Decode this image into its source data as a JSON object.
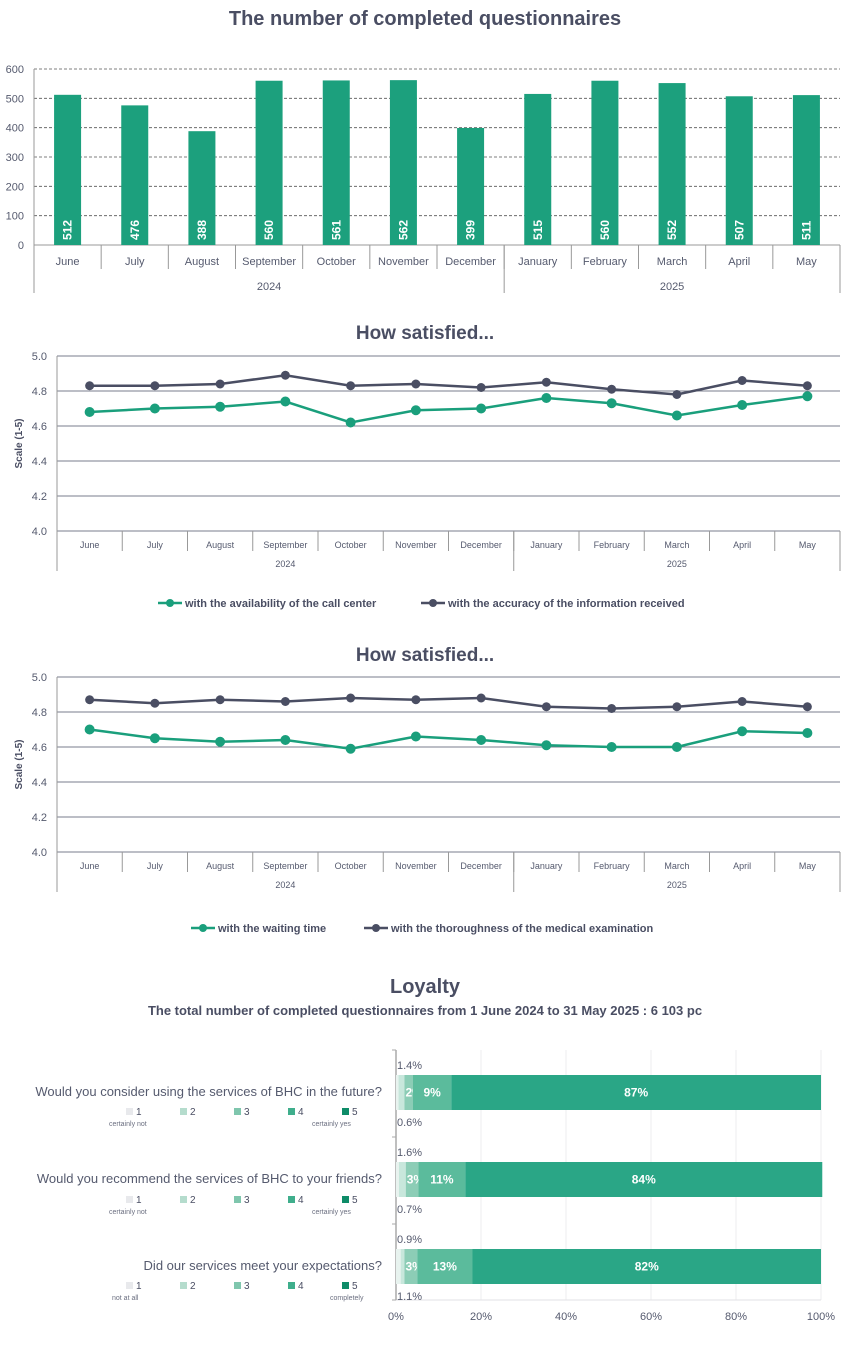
{
  "colors": {
    "green": "#1a9f7c",
    "dark": "#4a4e63",
    "grid": "#7a7d8c",
    "likert": [
      "#e8e9ec",
      "#b5dccd",
      "#7fc6ad",
      "#3fae8c",
      "#0e8c68"
    ],
    "bar_main": "#2aa686"
  },
  "chart_data": [
    {
      "type": "bar",
      "title": "The number of completed questionnaires",
      "categories": [
        "June",
        "July",
        "August",
        "September",
        "October",
        "November",
        "December",
        "January",
        "February",
        "March",
        "April",
        "May"
      ],
      "year_groups": [
        {
          "label": "2024",
          "span": 7
        },
        {
          "label": "2025",
          "span": 5
        }
      ],
      "values": [
        512,
        476,
        388,
        560,
        561,
        562,
        399,
        515,
        560,
        552,
        507,
        511
      ],
      "ylim": [
        0,
        600
      ],
      "yticks": [
        "0",
        "100",
        "200",
        "300",
        "400",
        "500",
        "600"
      ],
      "grid": "dashed"
    },
    {
      "type": "line",
      "title": "How satisfied...",
      "ylabel": "Scale (1-5)",
      "ylim": [
        4.0,
        5.0
      ],
      "yticks": [
        "4.0",
        "4.2",
        "4.4",
        "4.6",
        "4.8",
        "5.0"
      ],
      "categories": [
        "June",
        "July",
        "August",
        "September",
        "October",
        "November",
        "December",
        "January",
        "February",
        "March",
        "April",
        "May"
      ],
      "year_groups": [
        {
          "label": "2024",
          "span": 7
        },
        {
          "label": "2025",
          "span": 5
        }
      ],
      "series": [
        {
          "name": "with the availability of the call center",
          "color": "green",
          "values": [
            4.68,
            4.7,
            4.71,
            4.74,
            4.62,
            4.69,
            4.7,
            4.76,
            4.73,
            4.66,
            4.72,
            4.77
          ]
        },
        {
          "name": "with the accuracy of the information received",
          "color": "dark",
          "values": [
            4.83,
            4.83,
            4.84,
            4.89,
            4.83,
            4.84,
            4.82,
            4.85,
            4.81,
            4.78,
            4.86,
            4.83
          ]
        }
      ],
      "legend": "bottom"
    },
    {
      "type": "line",
      "title": "How satisfied...",
      "ylabel": "Scale (1-5)",
      "ylim": [
        4.0,
        5.0
      ],
      "yticks": [
        "4.0",
        "4.2",
        "4.4",
        "4.6",
        "4.8",
        "5.0"
      ],
      "categories": [
        "June",
        "July",
        "August",
        "September",
        "October",
        "November",
        "December",
        "January",
        "February",
        "March",
        "April",
        "May"
      ],
      "year_groups": [
        {
          "label": "2024",
          "span": 7
        },
        {
          "label": "2025",
          "span": 5
        }
      ],
      "series": [
        {
          "name": "with the waiting time",
          "color": "green",
          "values": [
            4.7,
            4.65,
            4.63,
            4.64,
            4.59,
            4.66,
            4.64,
            4.61,
            4.6,
            4.6,
            4.69,
            4.68
          ]
        },
        {
          "name": "with the thoroughness of the medical examination",
          "color": "dark",
          "values": [
            4.87,
            4.85,
            4.87,
            4.86,
            4.88,
            4.87,
            4.88,
            4.83,
            4.82,
            4.83,
            4.86,
            4.83
          ]
        }
      ],
      "legend": "bottom"
    },
    {
      "type": "bar",
      "orientation": "horizontal-stacked",
      "title": "Loyalty",
      "subtitle": "The total number of completed questionnaires from 1 June 2024 to 31 May 2025 : 6 103 pc",
      "xticks": [
        "0%",
        "20%",
        "40%",
        "60%",
        "80%",
        "100%"
      ],
      "xlim": [
        0,
        100
      ],
      "legend_levels": [
        "1",
        "2",
        "3",
        "4",
        "5"
      ],
      "questions": [
        {
          "label": "Would you consider using the services of BHC in the future?",
          "anchor_low": "certainly not",
          "anchor_high": "certainly yes",
          "segments": [
            0.6,
            1.4,
            2,
            9,
            87
          ],
          "labels_inside": [
            "",
            "",
            "2%",
            "9%",
            "87%"
          ],
          "label_above": "1.4%",
          "label_below": "0.6%"
        },
        {
          "label": "Would you recommend the services of BHC to your friends?",
          "anchor_low": "certainly not",
          "anchor_high": "certainly yes",
          "segments": [
            0.7,
            1.6,
            3,
            11,
            84
          ],
          "labels_inside": [
            "",
            "",
            "3%",
            "11%",
            "84%"
          ],
          "label_above": "1.6%",
          "label_below": "0.7%"
        },
        {
          "label": "Did our services meet your expectations?",
          "anchor_low": "not at all",
          "anchor_high": "completely",
          "segments": [
            1.1,
            0.9,
            3,
            13,
            82
          ],
          "labels_inside": [
            "",
            "",
            "3%",
            "13%",
            "82%"
          ],
          "label_above": "0.9%",
          "label_below": "1.1%"
        }
      ]
    }
  ]
}
